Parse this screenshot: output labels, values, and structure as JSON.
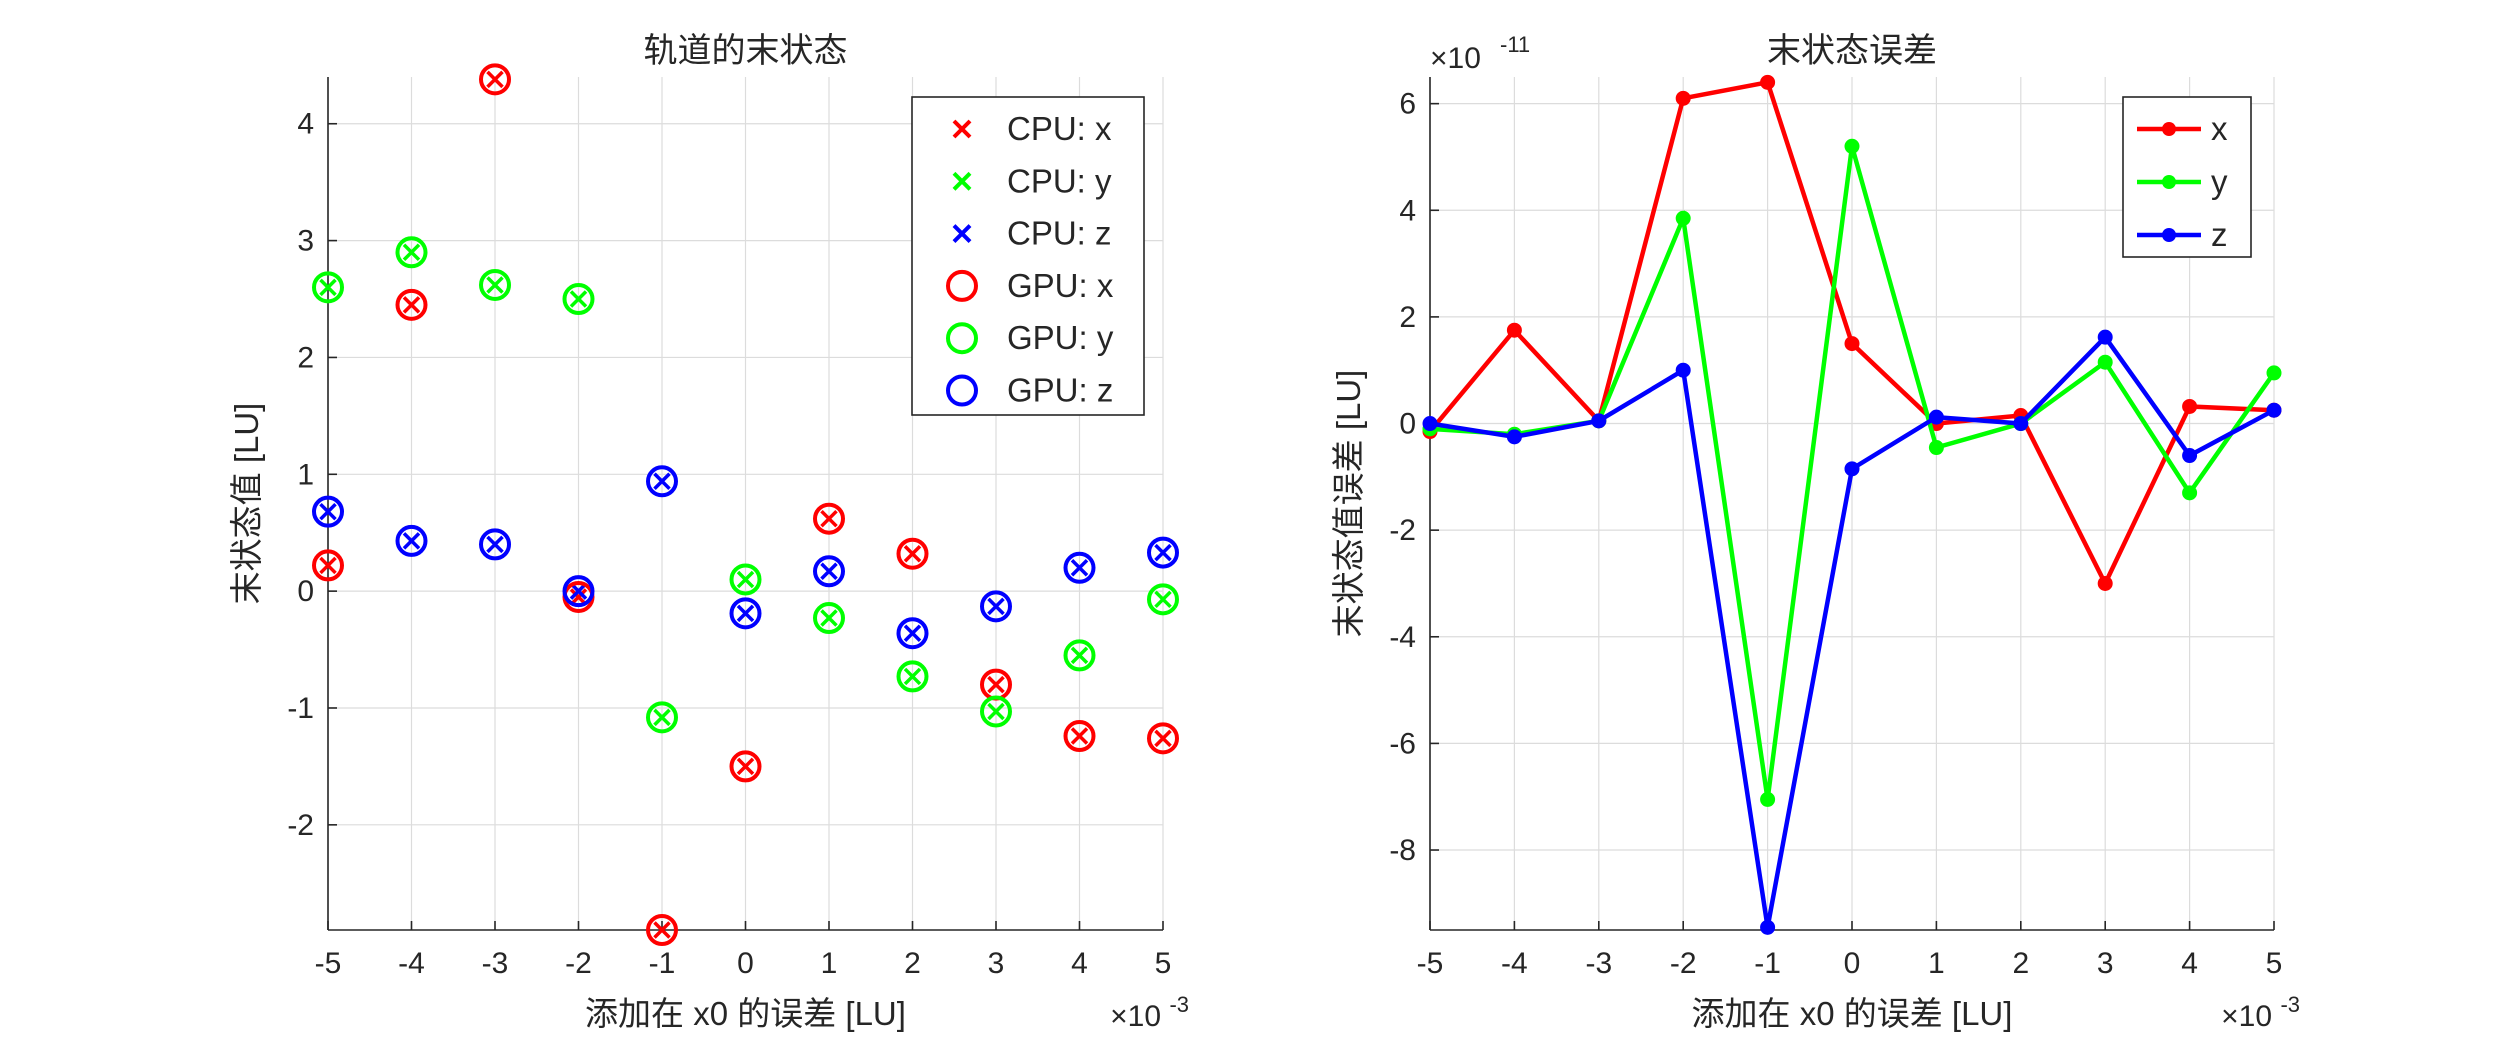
{
  "chart_data": [
    {
      "type": "scatter",
      "title": "轨道的末状态",
      "xlabel": "添加在 x0 的误差 [LU]",
      "ylabel": "末状态值 [LU]",
      "x_exponent_label": "×10",
      "x_exponent_power": "-3",
      "y_exponent_label": "",
      "y_exponent_power": "",
      "xlim": [
        -5,
        5
      ],
      "ylim": [
        -2.9,
        4.4
      ],
      "xticks": [
        -5,
        -4,
        -3,
        -2,
        -1,
        0,
        1,
        2,
        3,
        4,
        5
      ],
      "yticks": [
        -2,
        -1,
        0,
        1,
        2,
        3,
        4
      ],
      "grid": true,
      "legend_position": "top-right",
      "x": [
        -5,
        -4,
        -3,
        -2,
        -1,
        0,
        1,
        2,
        3,
        4,
        5
      ],
      "series": [
        {
          "name": "CPU: x",
          "marker": "x",
          "color": "#ff0000",
          "values": [
            0.22,
            2.45,
            4.38,
            -0.05,
            -2.9,
            -1.5,
            0.62,
            0.32,
            -0.8,
            -1.24,
            -1.26
          ]
        },
        {
          "name": "CPU: y",
          "marker": "x",
          "color": "#00ff00",
          "values": [
            2.6,
            2.9,
            2.62,
            2.5,
            -1.08,
            0.1,
            -0.23,
            -0.73,
            -1.03,
            -0.55,
            -0.07
          ]
        },
        {
          "name": "CPU: z",
          "marker": "x",
          "color": "#0000ff",
          "values": [
            0.68,
            0.43,
            0.4,
            0.0,
            0.94,
            -0.19,
            0.17,
            -0.36,
            -0.13,
            0.2,
            0.33
          ]
        },
        {
          "name": "GPU: x",
          "marker": "o",
          "color": "#ff0000",
          "values": [
            0.22,
            2.45,
            4.38,
            -0.05,
            -2.9,
            -1.5,
            0.62,
            0.32,
            -0.8,
            -1.24,
            -1.26
          ]
        },
        {
          "name": "GPU: y",
          "marker": "o",
          "color": "#00ff00",
          "values": [
            2.6,
            2.9,
            2.62,
            2.5,
            -1.08,
            0.1,
            -0.23,
            -0.73,
            -1.03,
            -0.55,
            -0.07
          ]
        },
        {
          "name": "GPU: z",
          "marker": "o",
          "color": "#0000ff",
          "values": [
            0.68,
            0.43,
            0.4,
            0.0,
            0.94,
            -0.19,
            0.17,
            -0.36,
            -0.13,
            0.2,
            0.33
          ]
        }
      ]
    },
    {
      "type": "line",
      "title": "末状态误差",
      "xlabel": "添加在 x0 的误差 [LU]",
      "ylabel": "末状态值误差 [LU]",
      "x_exponent_label": "×10",
      "x_exponent_power": "-3",
      "y_exponent_label": "×10",
      "y_exponent_power": "-11",
      "xlim": [
        -5,
        5
      ],
      "ylim": [
        -9.5,
        6.5
      ],
      "xticks": [
        -5,
        -4,
        -3,
        -2,
        -1,
        0,
        1,
        2,
        3,
        4,
        5
      ],
      "yticks": [
        -8,
        -6,
        -4,
        -2,
        0,
        2,
        4,
        6
      ],
      "grid": true,
      "legend_position": "top-right",
      "x": [
        -5,
        -4,
        -3,
        -2,
        -1,
        0,
        1,
        2,
        3,
        4,
        5
      ],
      "series": [
        {
          "name": "x",
          "marker": "dot",
          "color": "#ff0000",
          "values": [
            -0.15,
            1.75,
            0.05,
            6.1,
            6.4,
            1.5,
            0.0,
            0.15,
            -3.0,
            0.32,
            0.25
          ]
        },
        {
          "name": "y",
          "marker": "dot",
          "color": "#00ff00",
          "values": [
            -0.1,
            -0.2,
            0.05,
            3.85,
            -7.05,
            5.2,
            -0.45,
            0.0,
            1.15,
            -1.3,
            0.95
          ]
        },
        {
          "name": "z",
          "marker": "dot",
          "color": "#0000ff",
          "values": [
            0.0,
            -0.25,
            0.05,
            1.0,
            -9.45,
            -0.85,
            0.12,
            0.0,
            1.62,
            -0.6,
            0.25
          ]
        }
      ]
    }
  ]
}
